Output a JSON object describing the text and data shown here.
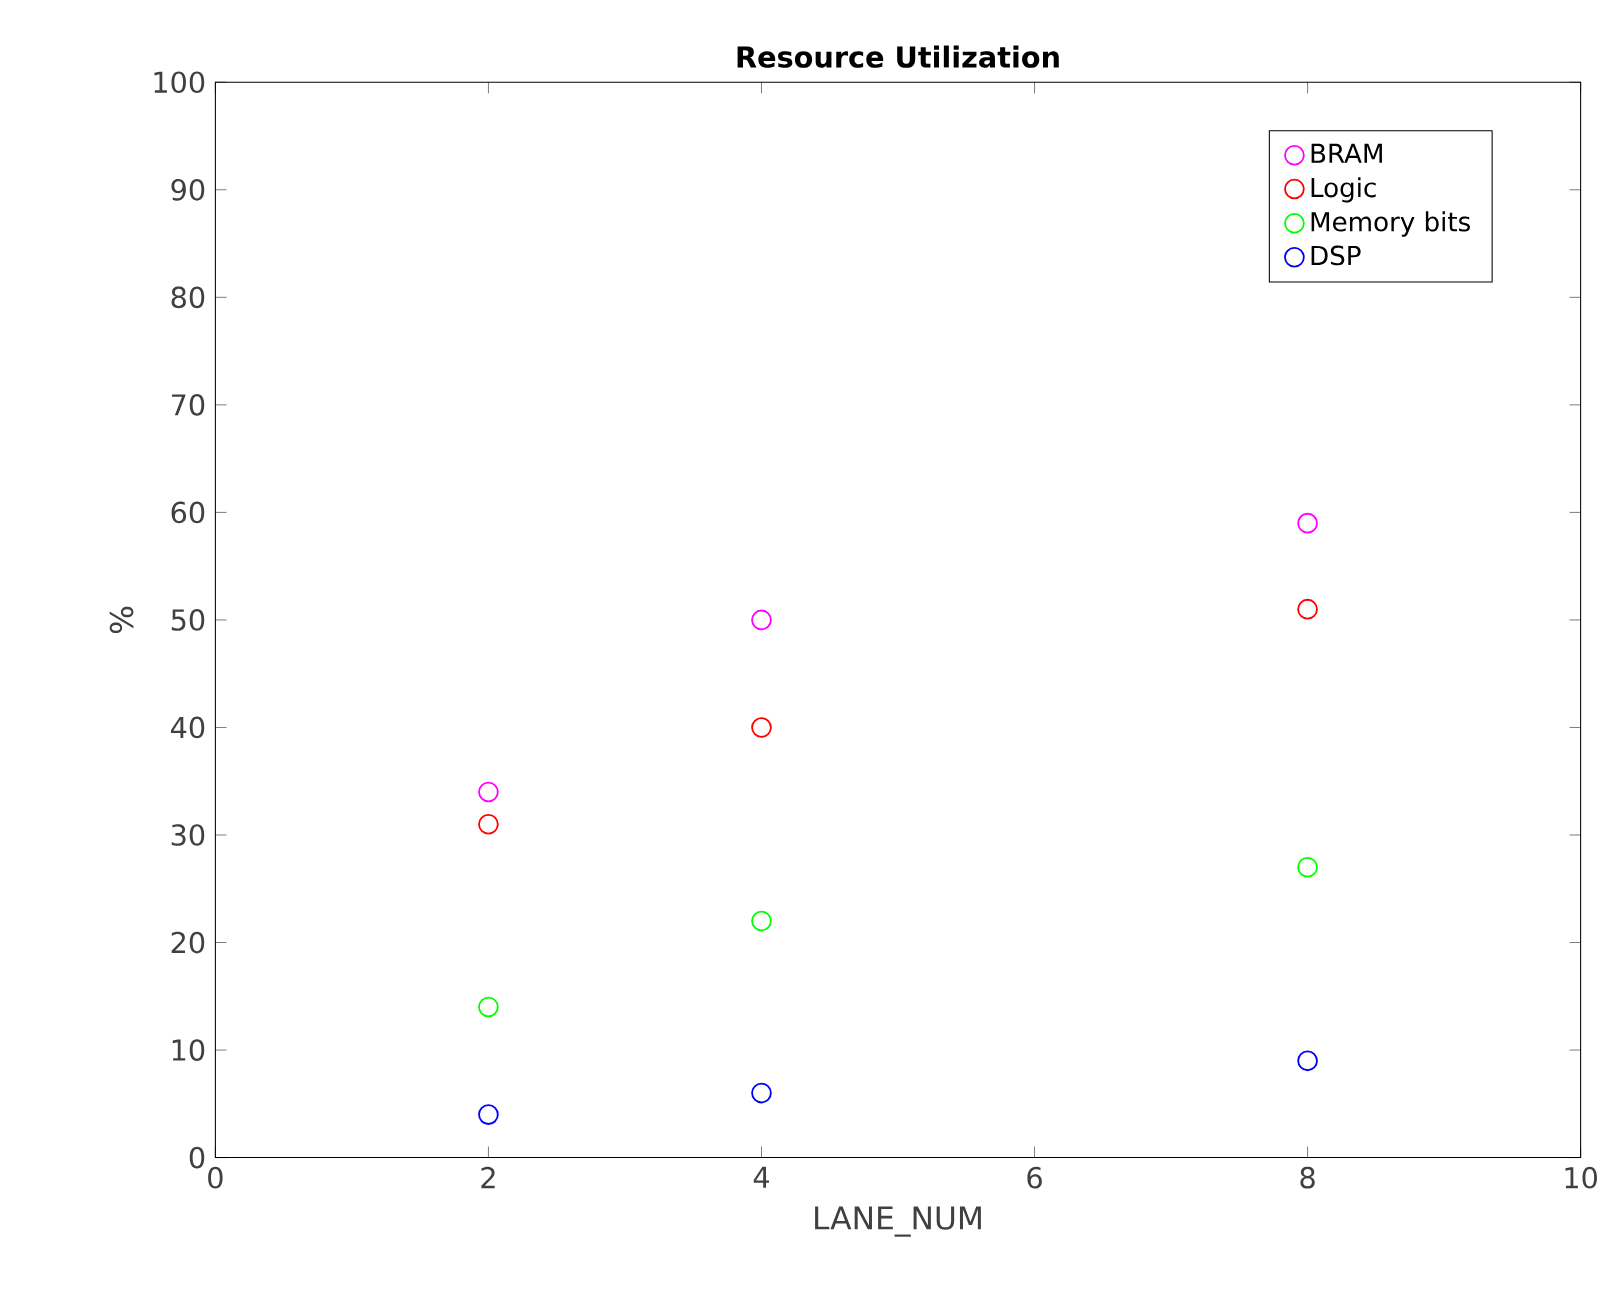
{
  "chart_data": {
    "type": "scatter",
    "title": "Resource Utilization",
    "xlabel": "LANE_NUM",
    "ylabel": "%",
    "x": [
      2,
      4,
      8
    ],
    "series": [
      {
        "name": "BRAM",
        "color": "#ff00ff",
        "values": [
          34,
          50,
          59
        ]
      },
      {
        "name": "Logic",
        "color": "#ff0000",
        "values": [
          31,
          40,
          51
        ]
      },
      {
        "name": "Memory bits",
        "color": "#00ff00",
        "values": [
          14,
          22,
          27
        ]
      },
      {
        "name": "DSP",
        "color": "#0000ff",
        "values": [
          4,
          6,
          9
        ]
      }
    ],
    "xlim": [
      0,
      10
    ],
    "ylim": [
      0,
      100
    ],
    "xticks": [
      0,
      2,
      4,
      6,
      8,
      10
    ],
    "yticks": [
      0,
      10,
      20,
      30,
      40,
      50,
      60,
      70,
      80,
      90,
      100
    ],
    "marker": "circle",
    "legend": "top right"
  }
}
